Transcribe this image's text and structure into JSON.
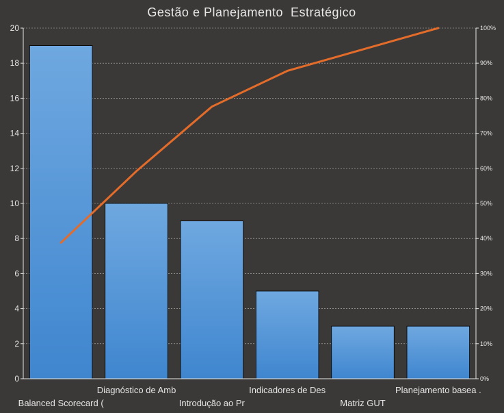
{
  "chart_data": {
    "type": "bar",
    "title": "Gestão e Planejamento  Estratégico",
    "categories": [
      "Balanced Scorecard (",
      "Diagnóstico de Amb",
      "Introdução ao Pr",
      "Indicadores de Des",
      "Matriz GUT",
      "Planejamento basea ."
    ],
    "series": [
      {
        "type": "bar",
        "values": [
          19,
          10,
          9,
          5,
          3,
          3
        ]
      },
      {
        "type": "line",
        "axis": "right",
        "values": [
          38.8,
          59.2,
          77.6,
          87.8,
          93.9,
          100
        ]
      }
    ],
    "ylim": [
      0,
      20
    ],
    "yticks": [
      "0",
      "2",
      "4",
      "6",
      "8",
      "10",
      "12",
      "14",
      "16",
      "18",
      "20"
    ],
    "y2lim": [
      0,
      100
    ],
    "y2ticks": [
      "0%",
      "10%",
      "20%",
      "30%",
      "40%",
      "50%",
      "60%",
      "70%",
      "80%",
      "90%",
      "100%"
    ],
    "grid": true,
    "legend": "none",
    "colors": {
      "background": "#3b3937",
      "bar_top": "#6fa8e0",
      "bar_bottom": "#3f86cf",
      "bar_edge": "#000000",
      "line": "#e46c2a",
      "grid": "#bdbdbd",
      "text": "#e6e6e6"
    }
  }
}
